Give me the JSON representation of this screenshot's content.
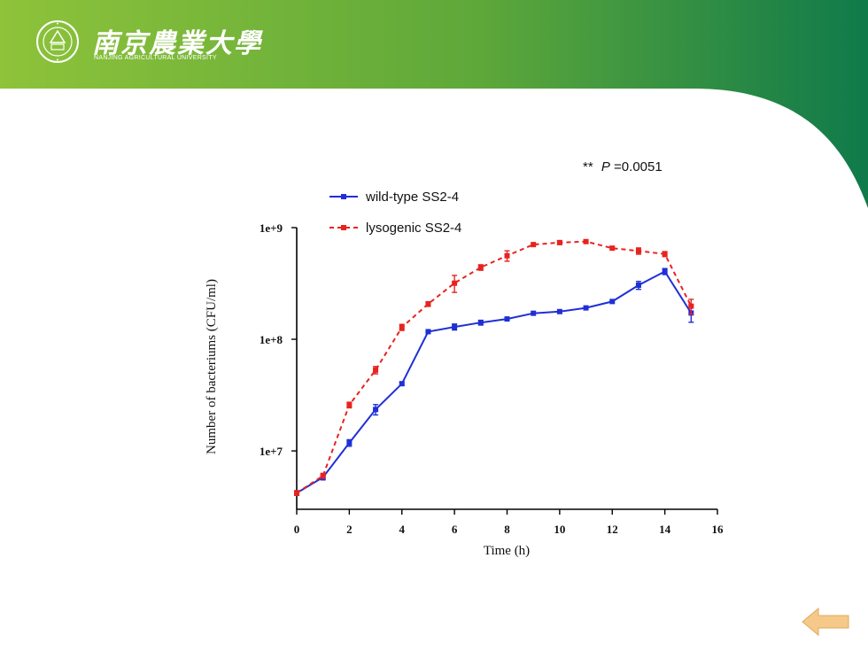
{
  "header": {
    "university_name_cn": "南京農業大學",
    "university_name_en": "NANJING AGRICULTURAL UNIVERSITY",
    "band_color_left": "#8ec33a",
    "band_color_right": "#0f7a4a"
  },
  "navigation": {
    "back_icon": "left-arrow-icon",
    "back_color": "#f5c98a"
  },
  "chart_data": {
    "type": "line",
    "title": "",
    "xlabel": "Time (h)",
    "ylabel": "Number of bacteriums (CFU/ml)",
    "xlim": [
      0,
      16
    ],
    "x_ticks": [
      0,
      2,
      4,
      6,
      8,
      10,
      12,
      14,
      16
    ],
    "ylim": [
      3000000,
      1000000000
    ],
    "yscale": "log",
    "y_ticks": [
      10000000,
      100000000,
      1000000000
    ],
    "y_tick_labels": [
      "1e+7",
      "1e+8",
      "1e+9"
    ],
    "grid": false,
    "legend_position": "top-left",
    "annotation": {
      "stars": "**",
      "label": "P",
      "value_text": "=0.0051"
    },
    "series": [
      {
        "name": "wild-type SS2-4",
        "color": "#1f2fd6",
        "line_style": "solid",
        "x": [
          0,
          1,
          2,
          3,
          4,
          5,
          6,
          7,
          8,
          9,
          10,
          11,
          12,
          13,
          14,
          15
        ],
        "values": [
          4200000,
          5800000,
          11800000,
          23500000,
          40000000,
          117000000,
          129000000,
          141000000,
          152000000,
          171000000,
          177000000,
          191000000,
          218000000,
          305000000,
          405000000,
          172000000
        ],
        "errors": [
          200000,
          300000,
          800000,
          2500000,
          1500000,
          3000000,
          8000000,
          7000000,
          5000000,
          5000000,
          6000000,
          5000000,
          6000000,
          25000000,
          25000000,
          30000000
        ]
      },
      {
        "name": "lysogenic SS2-4",
        "color": "#e8231f",
        "line_style": "dashed",
        "x": [
          0,
          1,
          2,
          3,
          4,
          5,
          6,
          7,
          8,
          9,
          10,
          11,
          12,
          13,
          14,
          15
        ],
        "values": [
          4200000,
          6000000,
          25800000,
          53000000,
          128000000,
          207000000,
          318000000,
          440000000,
          560000000,
          705000000,
          735000000,
          750000000,
          655000000,
          618000000,
          580000000,
          198000000
        ],
        "errors": [
          200000,
          300000,
          1500000,
          4000000,
          8000000,
          10000000,
          55000000,
          25000000,
          60000000,
          20000000,
          30000000,
          25000000,
          20000000,
          40000000,
          30000000,
          30000000
        ]
      }
    ]
  }
}
